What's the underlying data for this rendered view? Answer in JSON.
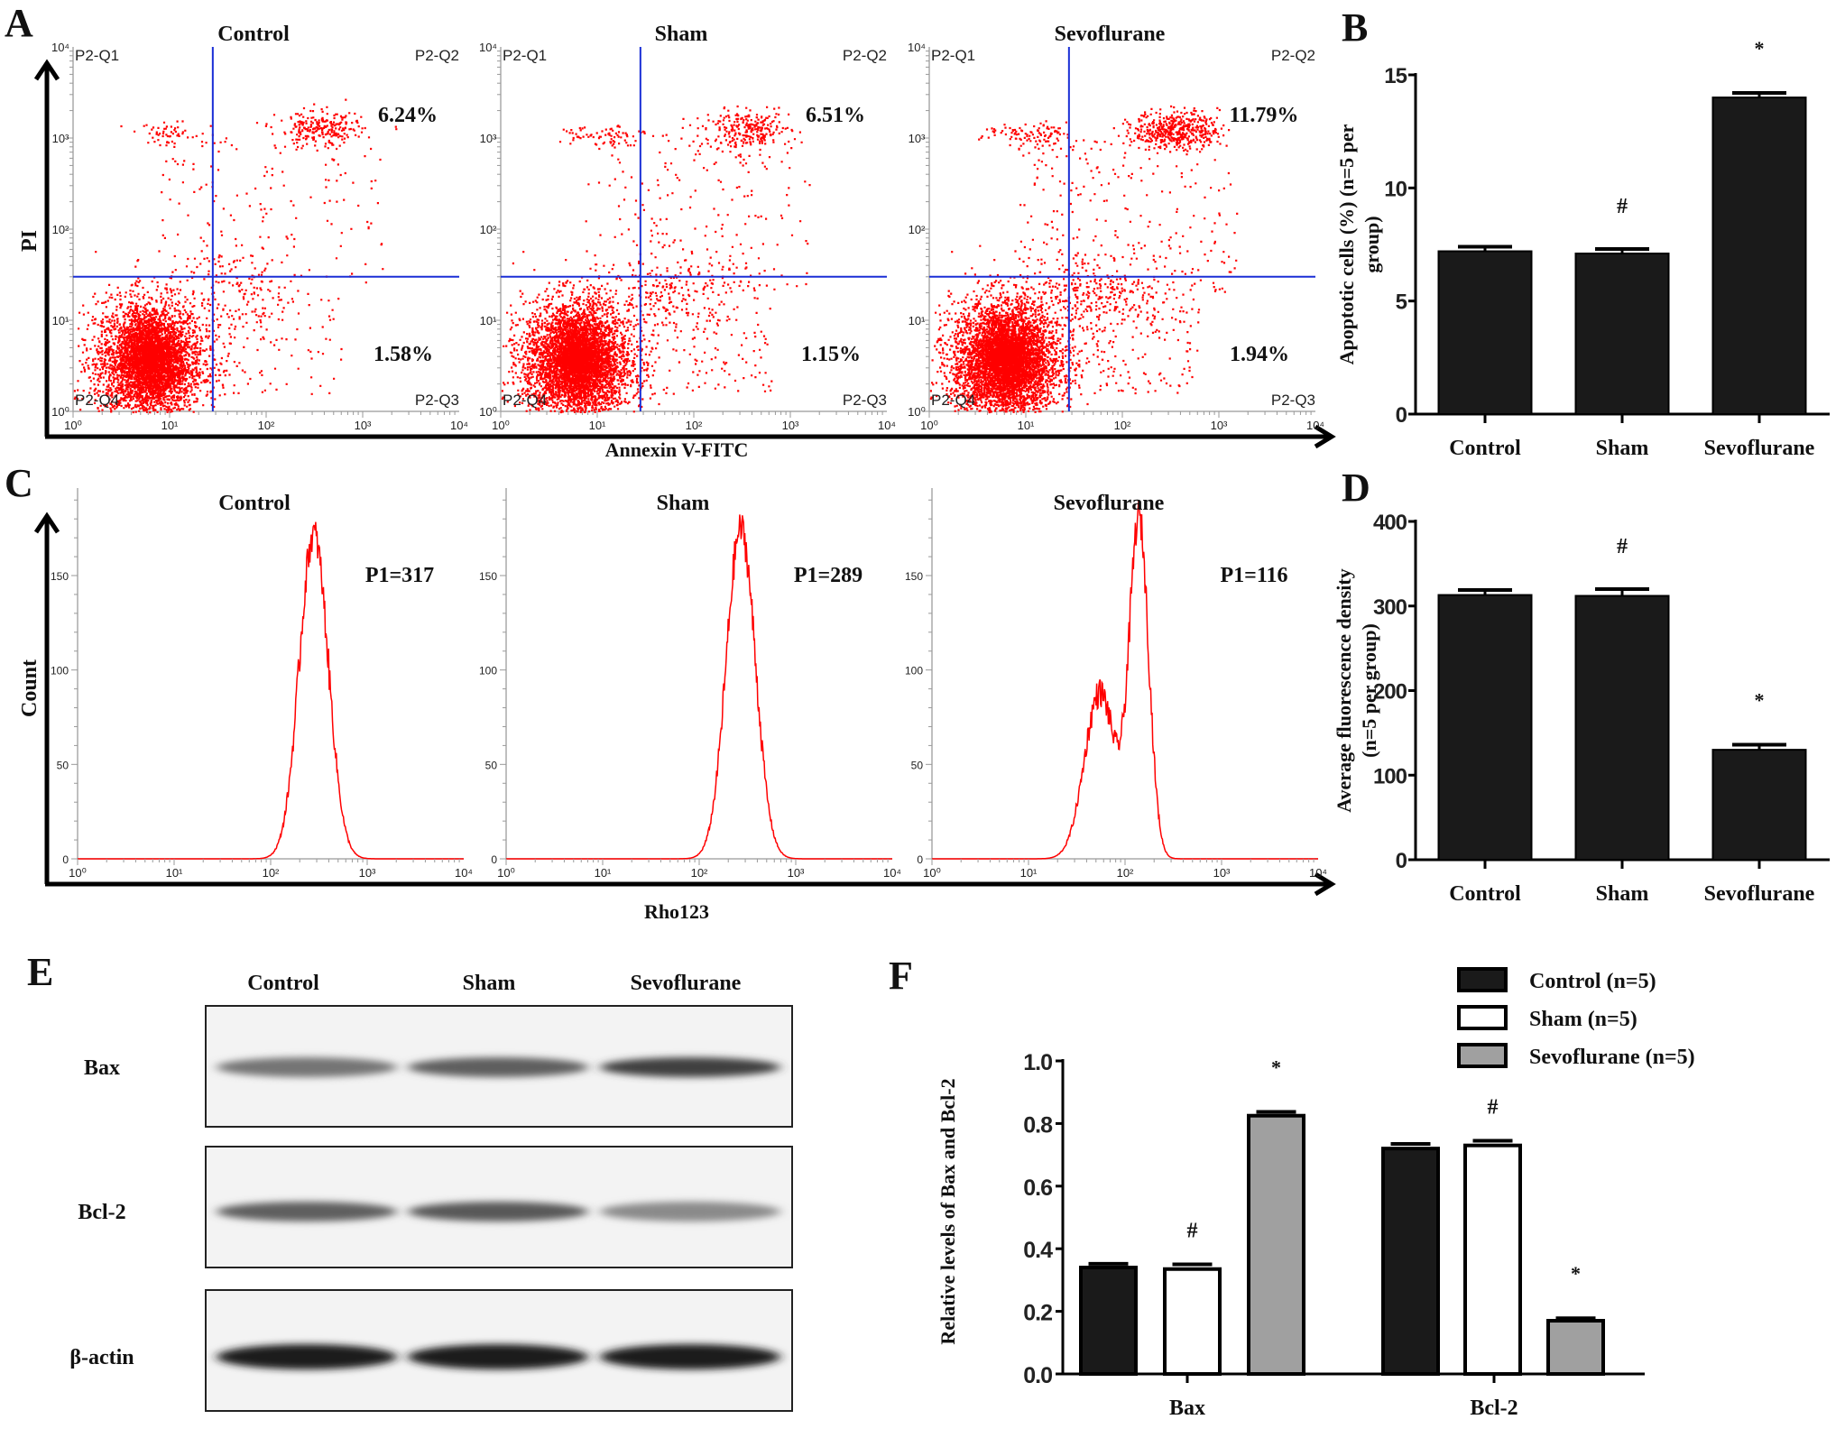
{
  "panel_letters": {
    "a": "A",
    "b": "B",
    "c": "C",
    "d": "D",
    "e": "E",
    "f": "F"
  },
  "colors": {
    "event_dots": "#ff0000",
    "gate_lines": "#1a2fd6",
    "histogram": "#ff0000",
    "bar_dark": "#1a1a1a",
    "bar_white": "#ffffff",
    "bar_gray": "#a0a0a0"
  },
  "chart_data": [
    {
      "id": "A",
      "type": "scatter",
      "xlabel": "Annexin V-FITC",
      "ylabel": "PI",
      "xscale": "log",
      "yscale": "log",
      "xlim": [
        1,
        10000
      ],
      "ylim": [
        1,
        10000
      ],
      "tick_labels": [
        "10⁰",
        "10¹",
        "10²",
        "10³",
        "10⁴"
      ],
      "gate": {
        "x": 28,
        "y": 30
      },
      "quadrant_labels": [
        "P2-Q1",
        "P2-Q2",
        "P2-Q3",
        "P2-Q4"
      ],
      "panels": [
        {
          "title": "Control",
          "q2_percent": "6.24%",
          "q3_percent": "1.58%"
        },
        {
          "title": "Sham",
          "q2_percent": "6.51%",
          "q3_percent": "1.15%"
        },
        {
          "title": "Sevoflurane",
          "q2_percent": "11.79%",
          "q3_percent": "1.94%"
        }
      ]
    },
    {
      "id": "B",
      "type": "bar",
      "categories": [
        "Control",
        "Sham",
        "Sevoflurane"
      ],
      "values": [
        7.2,
        7.1,
        14.0
      ],
      "errors": [
        0.2,
        0.2,
        0.2
      ],
      "annotations": [
        "",
        "#",
        "*"
      ],
      "ylabel_lines": [
        "Apoptotic cells (%) (n=5 per",
        "group)"
      ],
      "ylim": [
        0,
        15
      ],
      "yticks": [
        "0",
        "5",
        "10",
        "15"
      ]
    },
    {
      "id": "C",
      "type": "line",
      "xlabel": "Rho123",
      "ylabel": "Count",
      "xscale": "log",
      "xlim": [
        1,
        10000
      ],
      "tick_labels": [
        "10⁰",
        "10¹",
        "10²",
        "10³",
        "10⁴"
      ],
      "yticks": [
        "0",
        "50",
        "100",
        "150"
      ],
      "ylim": [
        0,
        195
      ],
      "panels": [
        {
          "title": "Control",
          "label": "P1=317",
          "peaks": [
            {
              "x": 280,
              "count": 172
            }
          ]
        },
        {
          "title": "Sham",
          "label": "P1=289",
          "peaks": [
            {
              "x": 270,
              "count": 175
            }
          ]
        },
        {
          "title": "Sevoflurane",
          "label": "P1=116",
          "peaks": [
            {
              "x": 55,
              "count": 88
            },
            {
              "x": 140,
              "count": 178
            }
          ]
        }
      ]
    },
    {
      "id": "D",
      "type": "bar",
      "categories": [
        "Control",
        "Sham",
        "Sevoflurane"
      ],
      "values": [
        313,
        312,
        130
      ],
      "errors": [
        6,
        8,
        6
      ],
      "annotations": [
        "",
        "#",
        "*"
      ],
      "ylabel_lines": [
        "Average  fluorescence density",
        "(n=5 per group)"
      ],
      "ylim": [
        0,
        400
      ],
      "yticks": [
        "0",
        "100",
        "200",
        "300",
        "400"
      ]
    },
    {
      "id": "F",
      "type": "bar",
      "categories": [
        "Bax",
        "Bcl-2"
      ],
      "series": [
        {
          "name": "Control (n=5)",
          "values": [
            0.34,
            0.72
          ],
          "errors": [
            0.012,
            0.015
          ],
          "annotations": [
            "",
            ""
          ]
        },
        {
          "name": "Sham  (n=5)",
          "values": [
            0.335,
            0.73
          ],
          "errors": [
            0.015,
            0.015
          ],
          "annotations": [
            "#",
            "#"
          ]
        },
        {
          "name": "Sevoflurane  (n=5)",
          "values": [
            0.825,
            0.17
          ],
          "errors": [
            0.012,
            0.008
          ],
          "annotations": [
            "*",
            "*"
          ]
        }
      ],
      "ylabel": "Relative levels of Bax and Bcl-2",
      "ylim": [
        0,
        1.0
      ],
      "yticks": [
        "0.0",
        "0.2",
        "0.4",
        "0.6",
        "0.8",
        "1.0"
      ]
    }
  ],
  "blot": {
    "lanes": [
      "Control",
      "Sham",
      "Sevoflurane"
    ],
    "rows": [
      {
        "label": "Bax",
        "intensities": [
          0.55,
          0.65,
          0.8
        ]
      },
      {
        "label": "Bcl-2",
        "intensities": [
          0.65,
          0.68,
          0.45
        ]
      },
      {
        "label": "β-actin",
        "intensities": [
          0.97,
          0.97,
          0.95
        ]
      }
    ]
  }
}
